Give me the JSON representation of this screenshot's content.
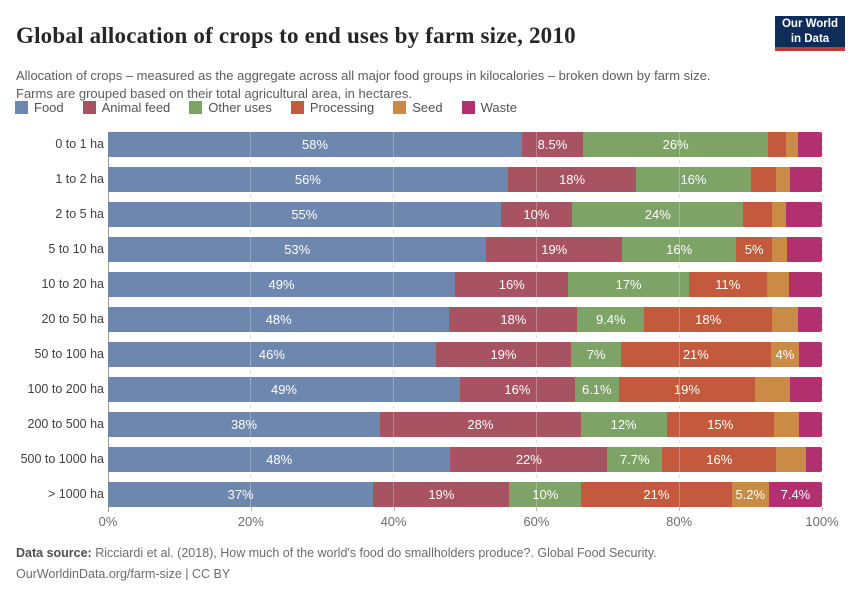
{
  "header": {
    "title": "Global allocation of crops to end uses by farm size, 2010",
    "subtitle": "Allocation of crops – measured as the aggregate across all major food groups in kilocalories – broken down by farm size. Farms are grouped based on their total agricultural area, in hectares.",
    "logo": {
      "line1": "Our World",
      "line2": "in Data",
      "bg_color": "#102d5a",
      "accent_color": "#c5382e"
    }
  },
  "chart_data": {
    "type": "bar",
    "variant": "stacked-horizontal",
    "title": "Global allocation of crops to end uses by farm size, 2010",
    "unit": "%",
    "xlim": [
      0,
      100
    ],
    "x_ticks": [
      "0%",
      "20%",
      "40%",
      "60%",
      "80%",
      "100%"
    ],
    "gridline_percents": [
      0,
      20,
      40,
      60,
      80,
      100
    ],
    "series_names": [
      "Food",
      "Animal feed",
      "Other uses",
      "Processing",
      "Seed",
      "Waste"
    ],
    "colors": [
      "#6e87ae",
      "#a85361",
      "#7da367",
      "#c45a3d",
      "#c98b45",
      "#b2306e"
    ],
    "categories": [
      "0 to 1 ha",
      "1 to 2 ha",
      "2 to 5 ha",
      "5 to 10 ha",
      "10 to 20 ha",
      "20 to 50 ha",
      "50 to 100 ha",
      "100 to 200 ha",
      "200 to 500 ha",
      "500 to 1000 ha",
      "> 1000 ha"
    ],
    "rows": [
      {
        "category": "0 to 1 ha",
        "values": [
          58,
          8.5,
          26,
          2.4,
          1.8,
          3.3
        ],
        "labels": [
          "58%",
          "8.5%",
          "26%",
          null,
          null,
          null
        ]
      },
      {
        "category": "1 to 2 ha",
        "values": [
          56,
          18,
          16,
          3.5,
          2.0,
          4.5
        ],
        "labels": [
          "56%",
          "18%",
          "16%",
          null,
          null,
          null
        ]
      },
      {
        "category": "2 to 5 ha",
        "values": [
          55,
          10,
          24,
          4.0,
          2.0,
          5.0
        ],
        "labels": [
          "55%",
          "10%",
          "24%",
          null,
          null,
          null
        ]
      },
      {
        "category": "5 to 10 ha",
        "values": [
          53,
          19,
          16,
          5,
          2.1,
          4.9
        ],
        "labels": [
          "53%",
          "19%",
          "16%",
          "5%",
          null,
          null
        ]
      },
      {
        "category": "10 to 20 ha",
        "values": [
          49,
          16,
          17,
          11,
          3.2,
          4.6
        ],
        "labels": [
          "49%",
          "16%",
          "17%",
          "11%",
          null,
          null
        ]
      },
      {
        "category": "20 to 50 ha",
        "values": [
          48,
          18,
          9.4,
          18,
          3.6,
          3.4
        ],
        "labels": [
          "48%",
          "18%",
          "9.4%",
          "18%",
          null,
          null
        ]
      },
      {
        "category": "50 to 100 ha",
        "values": [
          46,
          19,
          7,
          21,
          4,
          3.2
        ],
        "labels": [
          "46%",
          "19%",
          "7%",
          "21%",
          "4%",
          null
        ]
      },
      {
        "category": "100 to 200 ha",
        "values": [
          49,
          16,
          6.1,
          19,
          4.9,
          4.4
        ],
        "labels": [
          "49%",
          "16%",
          "6.1%",
          "19%",
          null,
          null
        ]
      },
      {
        "category": "200 to 500 ha",
        "values": [
          38,
          28,
          12,
          15,
          3.5,
          3.2
        ],
        "labels": [
          "38%",
          "28%",
          "12%",
          "15%",
          null,
          null
        ]
      },
      {
        "category": "500 to 1000 ha",
        "values": [
          48,
          22,
          7.7,
          16,
          4.1,
          2.3
        ],
        "labels": [
          "48%",
          "22%",
          "7.7%",
          "16%",
          null,
          null
        ]
      },
      {
        "category": "> 1000 ha",
        "values": [
          37,
          19,
          10,
          21,
          5.2,
          7.4
        ],
        "labels": [
          "37%",
          "19%",
          "10%",
          "21%",
          "5.2%",
          "7.4%"
        ]
      }
    ],
    "legend_position": "top",
    "grid": true
  },
  "footer": {
    "source_label": "Data source:",
    "source_text": " Ricciardi et al. (2018), How much of the world's food do smallholders produce?. Global Food Security.",
    "url": "OurWorldinData.org/farm-size",
    "separator": " | ",
    "license": "CC BY"
  }
}
